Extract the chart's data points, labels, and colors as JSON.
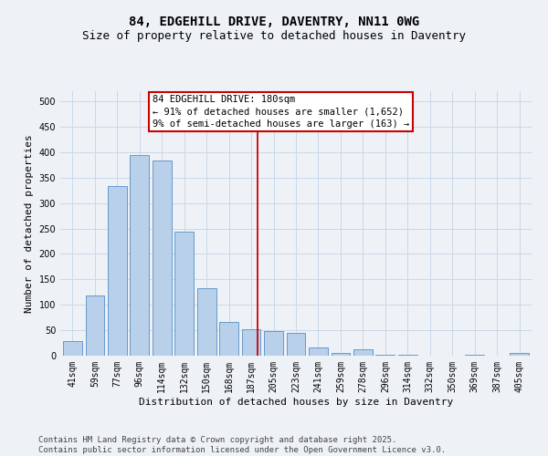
{
  "title": "84, EDGEHILL DRIVE, DAVENTRY, NN11 0WG",
  "subtitle": "Size of property relative to detached houses in Daventry",
  "xlabel": "Distribution of detached houses by size in Daventry",
  "ylabel": "Number of detached properties",
  "categories": [
    "41sqm",
    "59sqm",
    "77sqm",
    "96sqm",
    "114sqm",
    "132sqm",
    "150sqm",
    "168sqm",
    "187sqm",
    "205sqm",
    "223sqm",
    "241sqm",
    "259sqm",
    "278sqm",
    "296sqm",
    "314sqm",
    "332sqm",
    "350sqm",
    "369sqm",
    "387sqm",
    "405sqm"
  ],
  "values": [
    28,
    118,
    333,
    395,
    383,
    243,
    132,
    67,
    52,
    48,
    45,
    16,
    5,
    12,
    1,
    1,
    0,
    0,
    1,
    0,
    5
  ],
  "bar_color": "#b8d0ea",
  "bar_edge_color": "#6699cc",
  "grid_color": "#c8d8e8",
  "background_color": "#eef2f7",
  "vline_x_index": 8.3,
  "vline_color": "#cc0000",
  "annotation_text": "84 EDGEHILL DRIVE: 180sqm\n← 91% of detached houses are smaller (1,652)\n9% of semi-detached houses are larger (163) →",
  "annotation_box_color": "#ffffff",
  "annotation_box_edge_color": "#cc0000",
  "ylim": [
    0,
    520
  ],
  "yticks": [
    0,
    50,
    100,
    150,
    200,
    250,
    300,
    350,
    400,
    450,
    500
  ],
  "footer_line1": "Contains HM Land Registry data © Crown copyright and database right 2025.",
  "footer_line2": "Contains public sector information licensed under the Open Government Licence v3.0.",
  "title_fontsize": 10,
  "subtitle_fontsize": 9,
  "axis_label_fontsize": 8,
  "tick_fontsize": 7,
  "annotation_fontsize": 7.5,
  "footer_fontsize": 6.5
}
